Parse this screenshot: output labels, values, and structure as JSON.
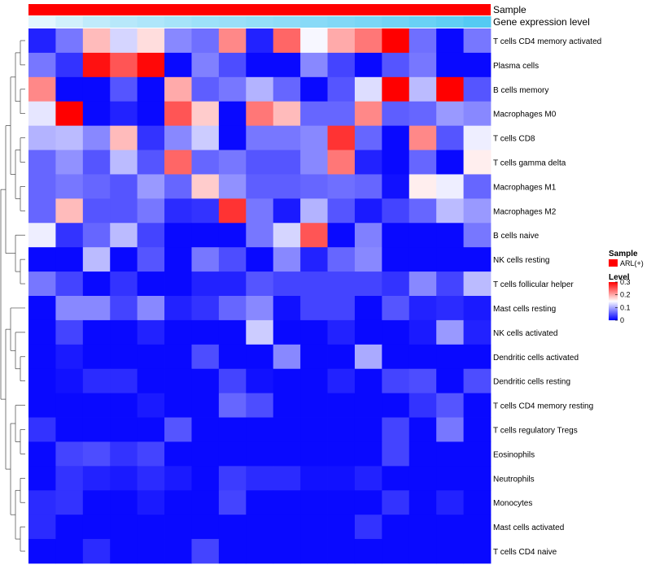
{
  "chart_data": {
    "type": "heatmap",
    "title": "",
    "annotation_tracks": [
      {
        "name": "Sample"
      },
      {
        "name": "Gene expression level"
      }
    ],
    "legend": {
      "sample_title": "Sample",
      "sample_entry": "ARL(+)",
      "sample_color": "#ff0000",
      "level_title": "Level",
      "ticks": [
        "0.3",
        "0.2",
        "0.1",
        "0"
      ],
      "range": [
        0,
        0.3
      ]
    },
    "row_labels": [
      "T cells CD4 memory activated",
      "Plasma cells",
      "B cells memory",
      "Macrophages M0",
      "T cells CD8",
      "T cells gamma delta",
      "Macrophages M1",
      "Macrophages M2",
      "B cells naive",
      "NK cells resting",
      "T cells follicular helper",
      "Mast cells resting",
      "NK cells activated",
      "Dendritic cells activated",
      "Dendritic cells resting",
      "T cells CD4 memory resting",
      "T cells regulatory  Tregs",
      "Eosinophils",
      "Neutrophils",
      "Monocytes",
      "Mast cells activated",
      "T cells CD4 naive"
    ],
    "expression_track": [
      0.1,
      0.2,
      0.3,
      0.35,
      0.4,
      0.45,
      0.5,
      0.52,
      0.55,
      0.58,
      0.62,
      0.66,
      0.7,
      0.75,
      0.8,
      0.85,
      0.92
    ],
    "values": [
      [
        0.02,
        0.07,
        0.19,
        0.125,
        0.17,
        0.08,
        0.065,
        0.22,
        0.02,
        0.24,
        0.145,
        0.2,
        0.23,
        0.3,
        0.065,
        0.005,
        0.07
      ],
      [
        0.07,
        0.03,
        0.29,
        0.25,
        0.295,
        0.005,
        0.075,
        0.045,
        0.005,
        0.005,
        0.08,
        0.04,
        0.005,
        0.05,
        0.07,
        0.005,
        0.005
      ],
      [
        0.22,
        0.005,
        0.005,
        0.05,
        0.005,
        0.2,
        0.055,
        0.07,
        0.105,
        0.06,
        0.005,
        0.05,
        0.13,
        0.3,
        0.11,
        0.3,
        0.05
      ],
      [
        0.135,
        0.3,
        0.005,
        0.02,
        0.005,
        0.25,
        0.18,
        0.005,
        0.23,
        0.19,
        0.06,
        0.06,
        0.22,
        0.055,
        0.06,
        0.09,
        0.08
      ],
      [
        0.105,
        0.11,
        0.08,
        0.19,
        0.03,
        0.08,
        0.12,
        0.005,
        0.07,
        0.07,
        0.08,
        0.27,
        0.06,
        0.005,
        0.22,
        0.05,
        0.14
      ],
      [
        0.06,
        0.085,
        0.05,
        0.11,
        0.05,
        0.24,
        0.06,
        0.07,
        0.05,
        0.05,
        0.08,
        0.23,
        0.02,
        0.005,
        0.06,
        0.005,
        0.16
      ],
      [
        0.06,
        0.07,
        0.06,
        0.05,
        0.09,
        0.06,
        0.18,
        0.085,
        0.055,
        0.055,
        0.06,
        0.065,
        0.06,
        0.01,
        0.16,
        0.14,
        0.06
      ],
      [
        0.06,
        0.19,
        0.05,
        0.05,
        0.07,
        0.025,
        0.03,
        0.27,
        0.07,
        0.015,
        0.105,
        0.05,
        0.015,
        0.04,
        0.06,
        0.11,
        0.09
      ],
      [
        0.14,
        0.03,
        0.06,
        0.11,
        0.04,
        0.005,
        0.005,
        0.005,
        0.07,
        0.125,
        0.25,
        0.005,
        0.075,
        0.005,
        0.005,
        0.005,
        0.07
      ],
      [
        0.005,
        0.005,
        0.11,
        0.005,
        0.05,
        0.005,
        0.07,
        0.045,
        0.005,
        0.08,
        0.02,
        0.06,
        0.08,
        0.005,
        0.005,
        0.005,
        0.005
      ],
      [
        0.07,
        0.04,
        0.005,
        0.03,
        0.005,
        0.005,
        0.02,
        0.02,
        0.05,
        0.04,
        0.04,
        0.04,
        0.04,
        0.03,
        0.08,
        0.04,
        0.11
      ],
      [
        0.005,
        0.08,
        0.08,
        0.04,
        0.08,
        0.02,
        0.03,
        0.06,
        0.08,
        0.01,
        0.04,
        0.04,
        0.005,
        0.05,
        0.02,
        0.025,
        0.015
      ],
      [
        0.005,
        0.04,
        0.005,
        0.005,
        0.02,
        0.005,
        0.005,
        0.005,
        0.12,
        0.005,
        0.005,
        0.02,
        0.005,
        0.005,
        0.015,
        0.09,
        0.02
      ],
      [
        0.005,
        0.015,
        0.005,
        0.005,
        0.005,
        0.005,
        0.045,
        0.005,
        0.005,
        0.08,
        0.005,
        0.005,
        0.1,
        0.005,
        0.005,
        0.005,
        0.005
      ],
      [
        0.005,
        0.01,
        0.025,
        0.025,
        0.005,
        0.005,
        0.005,
        0.04,
        0.01,
        0.005,
        0.005,
        0.02,
        0.005,
        0.04,
        0.045,
        0.005,
        0.045
      ],
      [
        0.005,
        0.005,
        0.005,
        0.005,
        0.015,
        0.005,
        0.005,
        0.06,
        0.045,
        0.005,
        0.005,
        0.005,
        0.005,
        0.005,
        0.03,
        0.05,
        0.005
      ],
      [
        0.03,
        0.005,
        0.005,
        0.005,
        0.005,
        0.05,
        0.005,
        0.005,
        0.005,
        0.005,
        0.005,
        0.005,
        0.005,
        0.04,
        0.005,
        0.07,
        0.005
      ],
      [
        0.005,
        0.04,
        0.045,
        0.03,
        0.04,
        0.005,
        0.005,
        0.005,
        0.005,
        0.005,
        0.005,
        0.005,
        0.005,
        0.04,
        0.005,
        0.005,
        0.005
      ],
      [
        0.005,
        0.03,
        0.02,
        0.015,
        0.025,
        0.015,
        0.005,
        0.035,
        0.025,
        0.025,
        0.01,
        0.01,
        0.02,
        0.005,
        0.005,
        0.005,
        0.005
      ],
      [
        0.025,
        0.03,
        0.005,
        0.005,
        0.015,
        0.005,
        0.005,
        0.04,
        0.005,
        0.005,
        0.005,
        0.005,
        0.005,
        0.03,
        0.005,
        0.02,
        0.005
      ],
      [
        0.025,
        0.005,
        0.005,
        0.005,
        0.005,
        0.005,
        0.005,
        0.005,
        0.005,
        0.005,
        0.005,
        0.005,
        0.03,
        0.005,
        0.005,
        0.005,
        0.005
      ],
      [
        0.005,
        0.005,
        0.025,
        0.005,
        0.005,
        0.005,
        0.04,
        0.005,
        0.005,
        0.005,
        0.005,
        0.005,
        0.005,
        0.005,
        0.005,
        0.005,
        0.005
      ]
    ]
  }
}
